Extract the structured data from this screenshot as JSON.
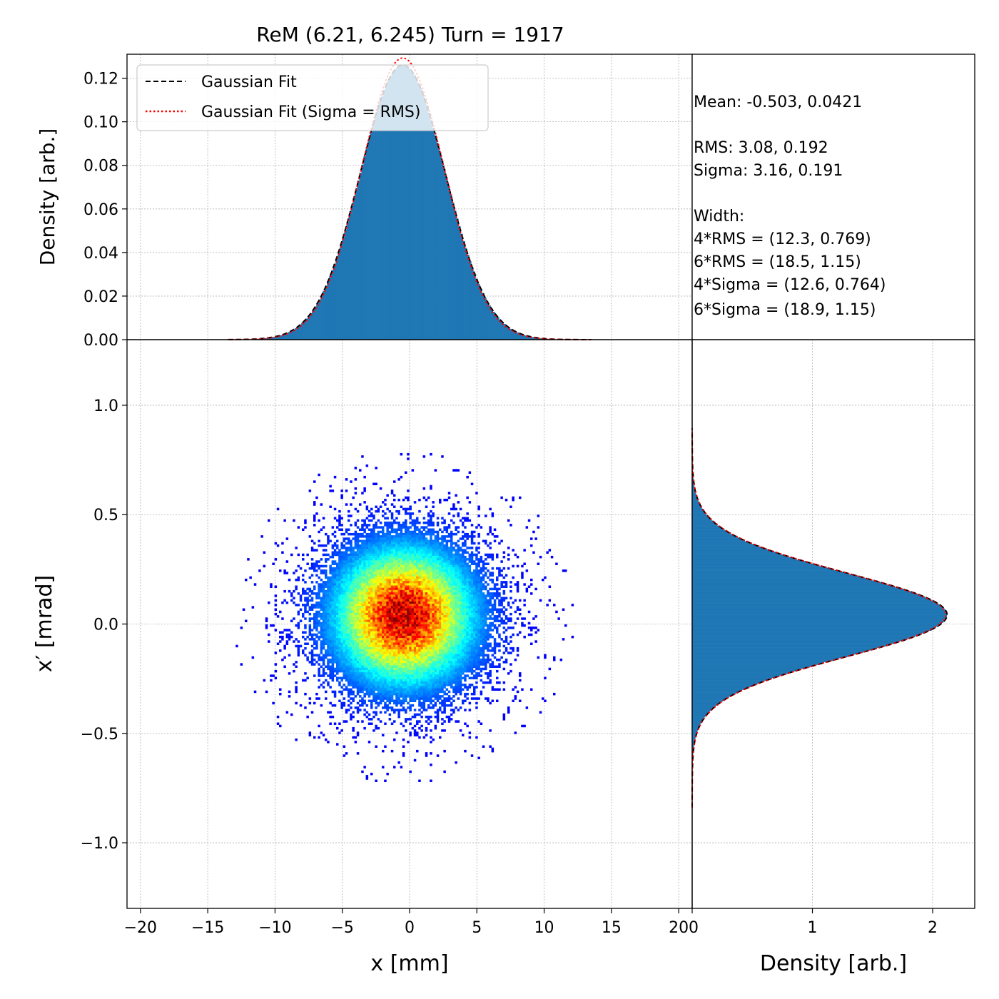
{
  "chart_data": {
    "title": "ReM (6.21, 6.245) Turn = 1917",
    "stats_box": {
      "lines": [
        "Mean: -0.503, 0.0421",
        "",
        "RMS: 3.08, 0.192",
        "Sigma: 3.16, 0.191",
        "",
        "Width:",
        "4*RMS = (12.3, 0.769)",
        "6*RMS = (18.5, 1.15)",
        "4*Sigma = (12.6, 0.764)",
        "6*Sigma = (18.9, 1.15)"
      ]
    },
    "top_histogram": {
      "type": "bar",
      "ylabel": "Density [arb.]",
      "xlim": [
        -21,
        21
      ],
      "ylim": [
        0,
        0.131
      ],
      "yticks": [
        0.0,
        0.02,
        0.04,
        0.06,
        0.08,
        0.1,
        0.12
      ],
      "ytick_labels": [
        "0.00",
        "0.02",
        "0.04",
        "0.06",
        "0.08",
        "0.10",
        "0.12"
      ],
      "mean": -0.503,
      "sigma": 3.16,
      "rms": 3.08,
      "peak": 0.126,
      "fit_range": [
        -13.5,
        13.5
      ],
      "legend": {
        "position": "upper-left",
        "entries": [
          {
            "label": "Gaussian Fit",
            "color": "#000000",
            "style": "dashed"
          },
          {
            "label": "Gaussian Fit (Sigma = RMS)",
            "color": "#ff0000",
            "style": "dotted"
          }
        ]
      }
    },
    "scatter": {
      "type": "heatmap",
      "xlabel": "x [mm]",
      "ylabel": "x′ [mrad]",
      "xlim": [
        -21,
        21
      ],
      "ylim": [
        -1.3,
        1.3
      ],
      "xticks": [
        -20,
        -15,
        -10,
        -5,
        0,
        5,
        10,
        15,
        20
      ],
      "xtick_labels": [
        "−20",
        "−15",
        "−10",
        "−5",
        "0",
        "5",
        "10",
        "15",
        "20"
      ],
      "yticks": [
        -1.0,
        -0.5,
        0.0,
        0.5,
        1.0
      ],
      "ytick_labels": [
        "−1.0",
        "−0.5",
        "0.0",
        "0.5",
        "1.0"
      ],
      "center": [
        -0.503,
        0.0421
      ],
      "sigma": [
        3.16,
        0.191
      ],
      "colormap": "jet"
    },
    "right_histogram": {
      "type": "bar",
      "xlabel": "Density [arb.]",
      "xlim": [
        0,
        2.35
      ],
      "ylim": [
        -1.3,
        1.3
      ],
      "xticks": [
        0,
        1,
        2
      ],
      "xtick_labels": [
        "0",
        "1",
        "2"
      ],
      "mean": 0.0421,
      "sigma": 0.191,
      "rms": 0.192,
      "peak": 2.12,
      "fit_range": [
        -0.84,
        0.9
      ]
    },
    "colors": {
      "bar": "#1f77b4",
      "grid": "#b0b0b0",
      "fit_black": "#000000",
      "fit_red": "#ff0000",
      "background": "#ffffff"
    }
  }
}
